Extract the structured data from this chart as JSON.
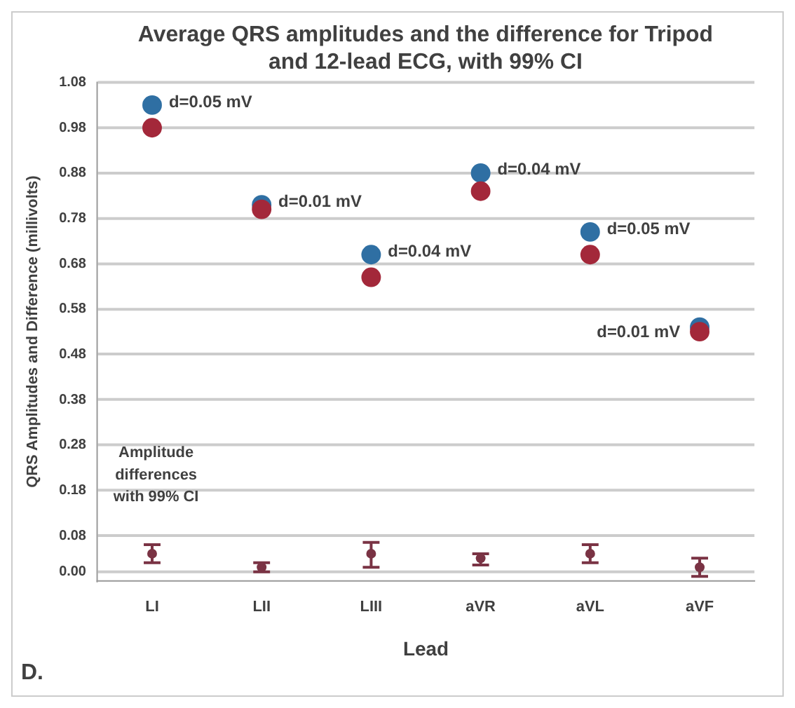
{
  "chart_data": {
    "type": "scatter",
    "title": "Average QRS amplitudes and the difference for Tripod and 12-lead ECG, with 99% CI",
    "xlabel": "Lead",
    "ylabel": "QRS Amplitudes and Difference (millivolts)",
    "categories": [
      "LI",
      "LII",
      "LIII",
      "aVR",
      "aVL",
      "aVF"
    ],
    "series": [
      {
        "color": "#2f6fa3",
        "values": [
          1.03,
          0.81,
          0.7,
          0.88,
          0.75,
          0.54
        ]
      },
      {
        "color": "#a3283a",
        "values": [
          0.98,
          0.8,
          0.65,
          0.84,
          0.7,
          0.53
        ]
      },
      {
        "color": "#7a3344",
        "values": [
          0.04,
          0.01,
          0.04,
          0.03,
          0.04,
          0.01
        ],
        "errors": [
          [
            0.02,
            0.06
          ],
          [
            0.0,
            0.02
          ],
          [
            0.01,
            0.065
          ],
          [
            0.015,
            0.04
          ],
          [
            0.02,
            0.06
          ],
          [
            -0.01,
            0.03
          ]
        ]
      }
    ],
    "ylim": [
      -0.02,
      1.08
    ],
    "yticks": [
      {
        "value": 0,
        "label": "0.00"
      },
      {
        "value": 0.08,
        "label": "0.08"
      },
      {
        "value": 0.18,
        "label": "0.18"
      },
      {
        "value": 0.28,
        "label": "0.28"
      },
      {
        "value": 0.38,
        "label": "0.38"
      },
      {
        "value": 0.48,
        "label": "0.48"
      },
      {
        "value": 0.58,
        "label": "0.58"
      },
      {
        "value": 0.68,
        "label": "0.68"
      },
      {
        "value": 0.78,
        "label": "0.78"
      },
      {
        "value": 0.88,
        "label": "0.88"
      },
      {
        "value": 0.98,
        "label": "0.98"
      },
      {
        "value": 1.08,
        "label": "1.08"
      }
    ],
    "grid": "y",
    "legend": false,
    "marker": "circle",
    "annotations": [
      {
        "text": "d=0.05 mV",
        "x": "LI",
        "y": 1.03
      },
      {
        "text": "d=0.01 mV",
        "x": "LII",
        "y": 0.81
      },
      {
        "text": "d=0.04 mV",
        "x": "LIII",
        "y": 0.7
      },
      {
        "text": "d=0.04 mV",
        "x": "aVR",
        "y": 0.88
      },
      {
        "text": "d=0.05 mV",
        "x": "aVL",
        "y": 0.75
      },
      {
        "text": "d=0.01 mV",
        "x": "aVF",
        "y": 0.54
      },
      "Amplitude differences with 99% CI",
      "D."
    ]
  }
}
